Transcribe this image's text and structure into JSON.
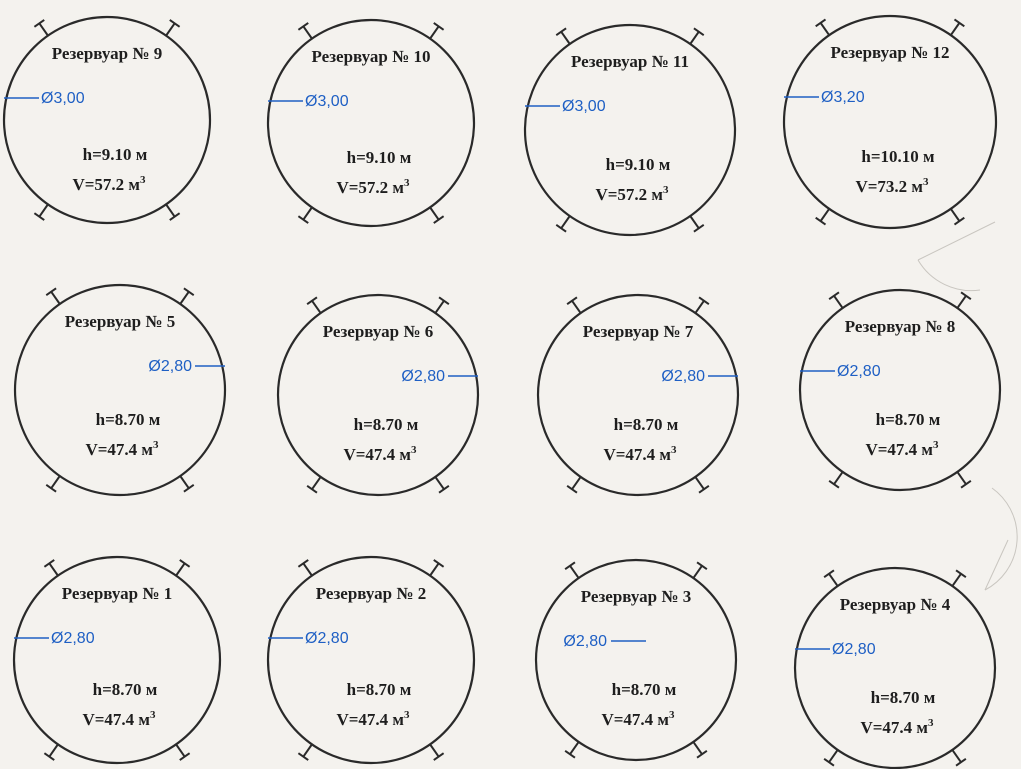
{
  "colors": {
    "background": "#f4f2ee",
    "outline": "#2a2a2a",
    "dimension": "#1e5fc4"
  },
  "tanks": [
    {
      "title": "Резервуар № 9",
      "diameter": "Ø3,00",
      "height": "h=9.10 м",
      "volume": "V=57.2 м",
      "volume_unit_sup": "3",
      "diameter_side": "left"
    },
    {
      "title": "Резервуар № 10",
      "diameter": "Ø3,00",
      "height": "h=9.10 м",
      "volume": "V=57.2 м",
      "volume_unit_sup": "3",
      "diameter_side": "left"
    },
    {
      "title": "Резервуар № 11",
      "diameter": "Ø3,00",
      "height": "h=9.10 м",
      "volume": "V=57.2 м",
      "volume_unit_sup": "3",
      "diameter_side": "left"
    },
    {
      "title": "Резервуар № 12",
      "diameter": "Ø3,20",
      "height": "h=10.10 м",
      "volume": "V=73.2 м",
      "volume_unit_sup": "3",
      "diameter_side": "left"
    },
    {
      "title": "Резервуар № 5",
      "diameter": "Ø2,80",
      "height": "h=8.70 м",
      "volume": "V=47.4 м",
      "volume_unit_sup": "3",
      "diameter_side": "right"
    },
    {
      "title": "Резервуар № 6",
      "diameter": "Ø2,80",
      "height": "h=8.70 м",
      "volume": "V=47.4 м",
      "volume_unit_sup": "3",
      "diameter_side": "right"
    },
    {
      "title": "Резервуар № 7",
      "diameter": "Ø2,80",
      "height": "h=8.70 м",
      "volume": "V=47.4 м",
      "volume_unit_sup": "3",
      "diameter_side": "right"
    },
    {
      "title": "Резервуар № 8",
      "diameter": "Ø2,80",
      "height": "h=8.70 м",
      "volume": "V=47.4 м",
      "volume_unit_sup": "3",
      "diameter_side": "left"
    },
    {
      "title": "Резервуар № 1",
      "diameter": "Ø2,80",
      "height": "h=8.70 м",
      "volume": "V=47.4 м",
      "volume_unit_sup": "3",
      "diameter_side": "left"
    },
    {
      "title": "Резервуар № 2",
      "diameter": "Ø2,80",
      "height": "h=8.70 м",
      "volume": "V=47.4 м",
      "volume_unit_sup": "3",
      "diameter_side": "left"
    },
    {
      "title": "Резервуар № 3",
      "diameter": "Ø2,80",
      "height": "h=8.70 м",
      "volume": "V=47.4 м",
      "volume_unit_sup": "3",
      "diameter_side": "inner-left"
    },
    {
      "title": "Резервуар № 4",
      "diameter": "Ø2,80",
      "height": "h=8.70 м",
      "volume": "V=47.4 м",
      "volume_unit_sup": "3",
      "diameter_side": "left"
    }
  ]
}
